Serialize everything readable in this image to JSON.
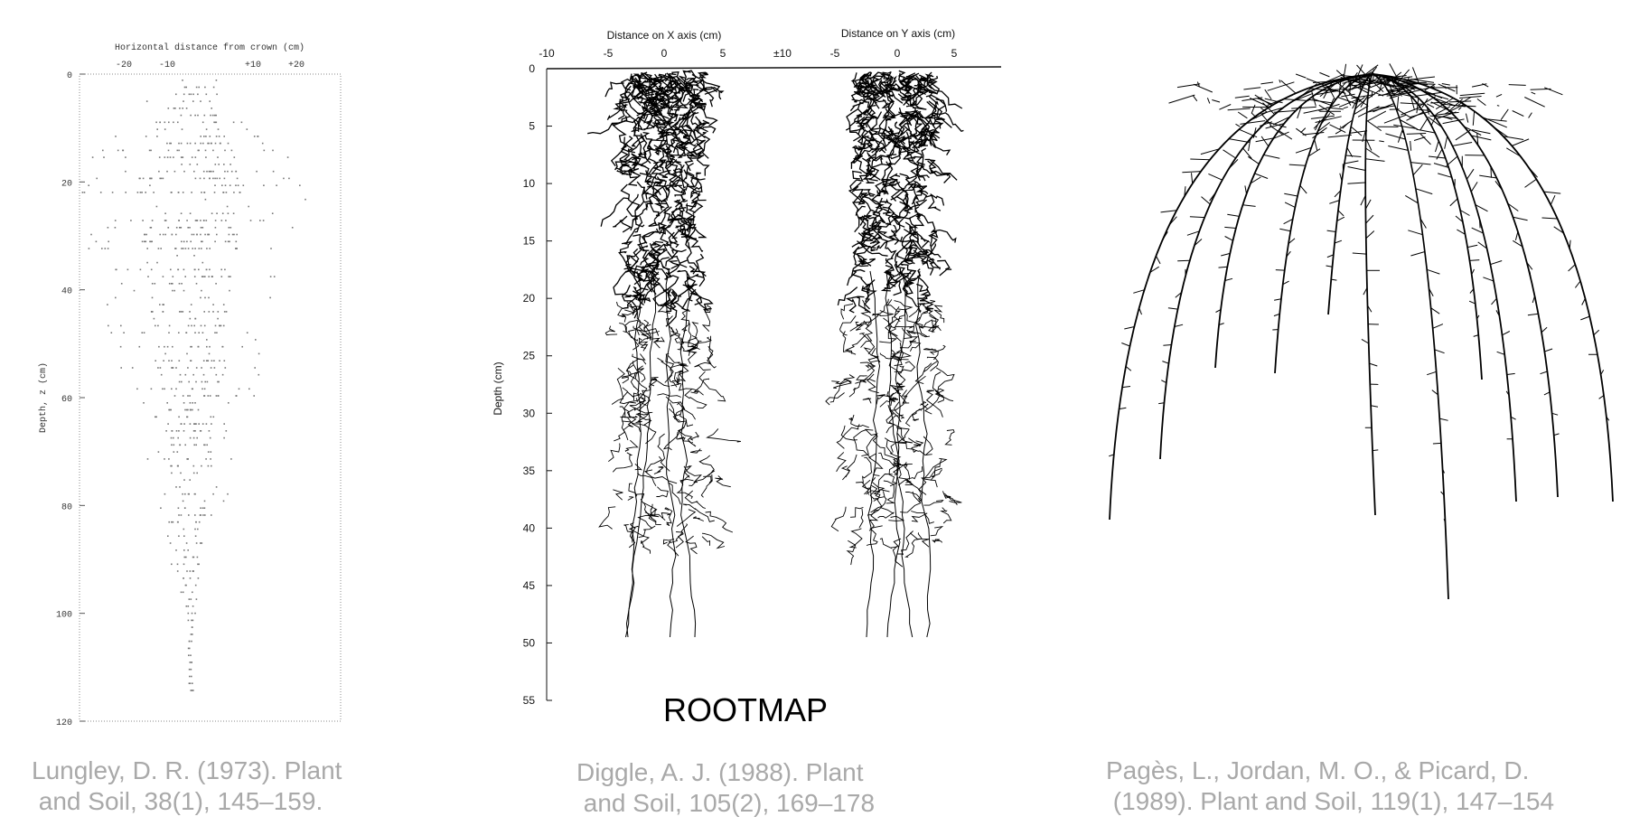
{
  "panels": [
    {
      "x_title": "Horizontal distance from crown (cm)",
      "x_ticks": [
        "-20",
        "-10",
        "+10",
        "+20"
      ],
      "y_title": "Depth, z (cm)",
      "y_ticks": [
        "0",
        "20",
        "40",
        "60",
        "80",
        "100",
        "120"
      ],
      "caption": "Lungley, D. R. (1973). Plant and Soil, 38(1), 145–159."
    },
    {
      "x_title": "Distance on X axis (cm)",
      "x_ticks": [
        "-10",
        "-5",
        "0",
        "5",
        "±10"
      ],
      "x2_title": "Distance on Y axis (cm)",
      "x2_ticks": [
        "-5",
        "0",
        "5"
      ],
      "y_title": "Depth (cm)",
      "y_ticks": [
        "0",
        "5",
        "10",
        "15",
        "20",
        "25",
        "30",
        "35",
        "40",
        "45",
        "50",
        "55"
      ],
      "label": "ROOTMAP",
      "caption": "Diggle, A. J. (1988). Plant and Soil, 105(2), 169–178"
    },
    {
      "caption": "Pagès, L., Jordan, M. O., & Picard, D. (1989). Plant and Soil, 119(1), 147–154"
    }
  ]
}
